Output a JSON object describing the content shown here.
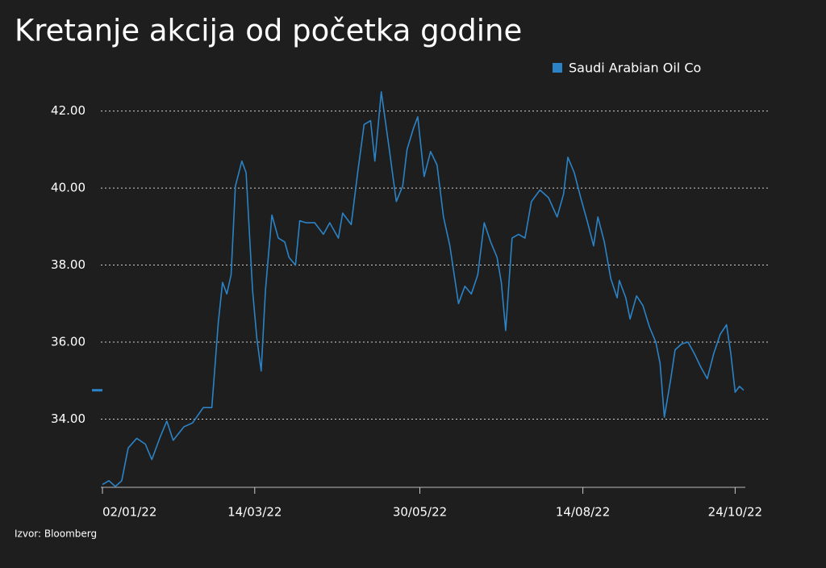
{
  "chart_data": {
    "type": "line",
    "title": "Kretanje akcija od početka godine",
    "source": "Izvor: Bloomberg",
    "x": [
      "02/01/22",
      "05/01/22",
      "08/01/22",
      "11/01/22",
      "14/01/22",
      "18/01/22",
      "22/01/22",
      "25/01/22",
      "29/01/22",
      "01/02/22",
      "04/02/22",
      "09/02/22",
      "13/02/22",
      "18/02/22",
      "22/02/22",
      "25/02/22",
      "27/02/22",
      "01/03/22",
      "03/03/22",
      "05/03/22",
      "08/03/22",
      "10/03/22",
      "13/03/22",
      "15/03/22",
      "17/03/22",
      "19/03/22",
      "22/03/22",
      "25/03/22",
      "28/03/22",
      "30/03/22",
      "02/04/22",
      "04/04/22",
      "07/04/22",
      "11/04/22",
      "15/04/22",
      "18/04/22",
      "22/04/22",
      "24/04/22",
      "28/04/22",
      "01/05/22",
      "04/05/22",
      "07/05/22",
      "09/05/22",
      "12/05/22",
      "16/05/22",
      "19/05/22",
      "22/05/22",
      "24/05/22",
      "27/05/22",
      "29/05/22",
      "01/06/22",
      "04/06/22",
      "07/06/22",
      "10/06/22",
      "13/06/22",
      "17/06/22",
      "20/06/22",
      "23/06/22",
      "26/06/22",
      "29/06/22",
      "02/07/22",
      "05/07/22",
      "07/07/22",
      "09/07/22",
      "12/07/22",
      "15/07/22",
      "18/07/22",
      "21/07/22",
      "25/07/22",
      "29/07/22",
      "02/08/22",
      "05/08/22",
      "07/08/22",
      "10/08/22",
      "13/08/22",
      "16/08/22",
      "19/08/22",
      "21/08/22",
      "24/08/22",
      "27/08/22",
      "30/08/22",
      "31/08/22",
      "03/09/22",
      "05/09/22",
      "08/09/22",
      "11/09/22",
      "14/09/22",
      "17/09/22",
      "19/09/22",
      "21/09/22",
      "24/09/22",
      "26/09/22",
      "29/09/22",
      "02/10/22",
      "05/10/22",
      "08/10/22",
      "11/10/22",
      "14/10/22",
      "17/10/22",
      "20/10/22",
      "22/10/22",
      "24/10/22",
      "26/10/22",
      "28/10/22"
    ],
    "series": [
      {
        "name": "Saudi Arabian Oil Co",
        "color": "#2b83c6",
        "values": [
          32.3,
          32.4,
          32.25,
          32.4,
          33.25,
          33.5,
          33.35,
          32.95,
          33.55,
          33.95,
          33.45,
          33.8,
          33.9,
          34.3,
          34.3,
          36.5,
          37.55,
          37.25,
          37.75,
          40.05,
          40.7,
          40.4,
          37.35,
          36.1,
          35.25,
          37.35,
          39.3,
          38.7,
          38.6,
          38.2,
          38.0,
          39.15,
          39.1,
          39.1,
          38.8,
          39.1,
          38.7,
          39.35,
          39.05,
          40.4,
          41.65,
          41.75,
          40.7,
          42.5,
          40.9,
          39.65,
          40.05,
          41.0,
          41.55,
          41.85,
          40.3,
          40.95,
          40.6,
          39.25,
          38.5,
          37.0,
          37.45,
          37.25,
          37.75,
          39.1,
          38.6,
          38.2,
          37.55,
          36.3,
          38.7,
          38.8,
          38.7,
          39.65,
          39.95,
          39.75,
          39.25,
          39.85,
          40.8,
          40.4,
          39.75,
          39.15,
          38.5,
          39.25,
          38.6,
          37.65,
          37.15,
          37.6,
          37.15,
          36.6,
          37.2,
          36.95,
          36.4,
          36.0,
          35.45,
          34.05,
          35.05,
          35.8,
          35.95,
          36.0,
          35.7,
          35.35,
          35.05,
          35.7,
          36.2,
          36.45,
          35.7,
          34.7,
          34.85,
          34.75
        ]
      }
    ],
    "xlim": [
      "02/01/22",
      "28/10/22"
    ],
    "xticks": [
      "02/01/22",
      "14/03/22",
      "30/05/22",
      "14/08/22",
      "24/10/22"
    ],
    "ylim": [
      32.25,
      42.6
    ],
    "yticks": [
      {
        "value": 34,
        "label": "34.00"
      },
      {
        "value": 36,
        "label": "36.00"
      },
      {
        "value": 38,
        "label": "38.00"
      },
      {
        "value": 40,
        "label": "40.00"
      },
      {
        "value": 42,
        "label": "42.00"
      }
    ],
    "grid": true,
    "legend": "top-right"
  }
}
